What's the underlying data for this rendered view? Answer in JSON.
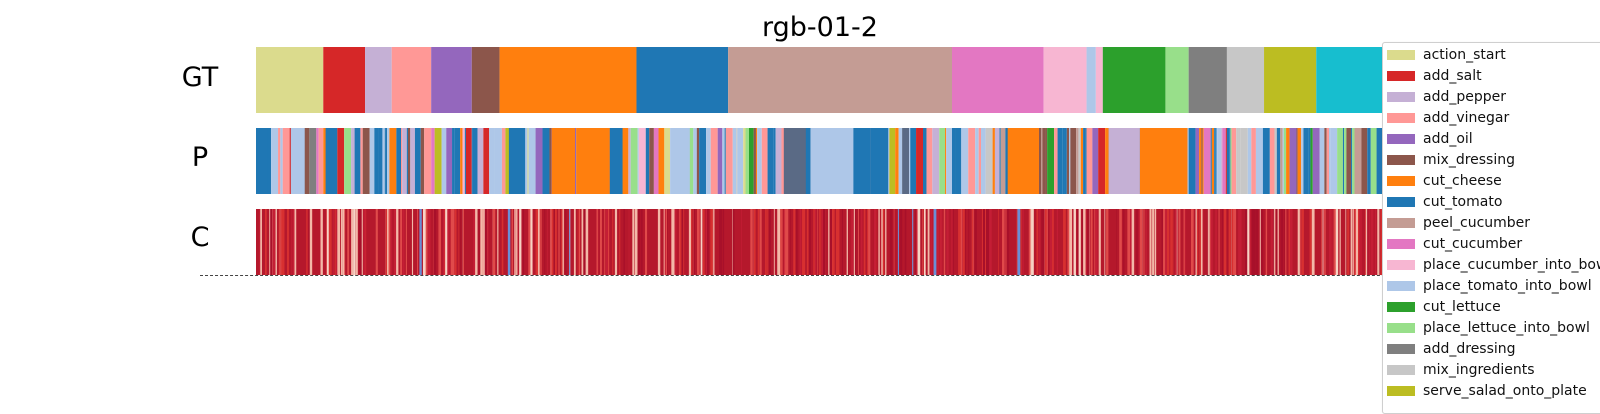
{
  "chart_data": {
    "type": "heatmap",
    "title": "rgb-01-2",
    "rows": [
      "GT",
      "P",
      "C"
    ],
    "frames": 1000,
    "legend_placement": "right",
    "classes": [
      {
        "name": "action_start",
        "color": "#dbdb8d"
      },
      {
        "name": "add_salt",
        "color": "#d62728"
      },
      {
        "name": "add_pepper",
        "color": "#c5b0d5"
      },
      {
        "name": "add_vinegar",
        "color": "#ff9896"
      },
      {
        "name": "add_oil",
        "color": "#9467bd"
      },
      {
        "name": "mix_dressing",
        "color": "#8c564b"
      },
      {
        "name": "cut_cheese",
        "color": "#ff7f0e"
      },
      {
        "name": "cut_tomato",
        "color": "#1f77b4"
      },
      {
        "name": "peel_cucumber",
        "color": "#c49c94"
      },
      {
        "name": "cut_cucumber",
        "color": "#e377c2"
      },
      {
        "name": "place_cucumber_into_bowl",
        "color": "#f7b6d2"
      },
      {
        "name": "place_tomato_into_bowl",
        "color": "#aec7e8"
      },
      {
        "name": "cut_lettuce",
        "color": "#2ca02c"
      },
      {
        "name": "place_lettuce_into_bowl",
        "color": "#98df8a"
      },
      {
        "name": "add_dressing",
        "color": "#7f7f7f"
      },
      {
        "name": "mix_ingredients",
        "color": "#c7c7c7"
      },
      {
        "name": "serve_salad_onto_plate",
        "color": "#bcbd22"
      }
    ],
    "gt_segments": [
      {
        "label": "action_start",
        "start": 0,
        "end": 58
      },
      {
        "label": "add_salt",
        "start": 58,
        "end": 94
      },
      {
        "label": "add_pepper",
        "start": 94,
        "end": 117
      },
      {
        "label": "add_vinegar",
        "start": 117,
        "end": 151
      },
      {
        "label": "add_oil",
        "start": 151,
        "end": 186
      },
      {
        "label": "mix_dressing",
        "start": 186,
        "end": 210
      },
      {
        "label": "cut_cheese",
        "start": 210,
        "end": 328
      },
      {
        "label": "cut_tomato",
        "start": 328,
        "end": 407
      },
      {
        "label": "peel_cucumber",
        "start": 407,
        "end": 600
      },
      {
        "label": "cut_cucumber",
        "start": 600,
        "end": 679
      },
      {
        "label": "place_cucumber_into_bowl",
        "start": 679,
        "end": 716
      },
      {
        "label": "place_tomato_into_bowl",
        "start": 716,
        "end": 724
      },
      {
        "label": "place_cucumber_into_bowl",
        "start": 724,
        "end": 730
      },
      {
        "label": "cut_lettuce",
        "start": 730,
        "end": 784
      },
      {
        "label": "place_lettuce_into_bowl",
        "start": 784,
        "end": 804
      },
      {
        "label": "add_dressing",
        "start": 804,
        "end": 837
      },
      {
        "label": "mix_ingredients",
        "start": 837,
        "end": 869
      },
      {
        "label": "serve_salad_onto_plate",
        "start": 869,
        "end": 914
      },
      {
        "label": "end",
        "start": 914,
        "end": 1000
      }
    ],
    "p_major_segments": [
      {
        "label": "cut_tomato",
        "start": 0,
        "end": 10
      },
      {
        "label": "place_tomato_into_bowl",
        "start": 30,
        "end": 42
      },
      {
        "label": "cut_tomato",
        "start": 60,
        "end": 70
      },
      {
        "label": "cut_tomato",
        "start": 218,
        "end": 232
      },
      {
        "label": "cut_cheese",
        "start": 255,
        "end": 275
      },
      {
        "label": "cut_cheese",
        "start": 276,
        "end": 305
      },
      {
        "label": "cut_tomato",
        "start": 305,
        "end": 316
      },
      {
        "label": "place_tomato_into_bowl",
        "start": 362,
        "end": 374
      },
      {
        "label": "mix_ingredients_dark",
        "start": 455,
        "end": 474
      },
      {
        "label": "place_tomato_into_bowl",
        "start": 478,
        "end": 515
      },
      {
        "label": "cut_tomato",
        "start": 515,
        "end": 530
      },
      {
        "label": "cut_tomato",
        "start": 530,
        "end": 545
      },
      {
        "label": "cut_cheese",
        "start": 648,
        "end": 675
      },
      {
        "label": "add_pepper",
        "start": 735,
        "end": 762
      },
      {
        "label": "cut_cheese",
        "start": 762,
        "end": 803
      }
    ],
    "c_description": "confidence strip, mostly high-confidence red with thin light and blue dropouts"
  }
}
